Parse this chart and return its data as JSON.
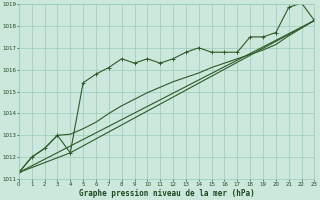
{
  "title": "Graphe pression niveau de la mer (hPa)",
  "bg_color": "#cce8dd",
  "grid_color": "#99ccbb",
  "line_color": "#2d5a27",
  "x_min": 0,
  "x_max": 23,
  "y_min": 1011,
  "y_max": 1019,
  "series1": [
    [
      0,
      1011.3
    ],
    [
      1,
      1012.0
    ],
    [
      2,
      1012.4
    ],
    [
      3,
      1013.0
    ],
    [
      4,
      1012.2
    ],
    [
      5,
      1015.4
    ],
    [
      6,
      1015.8
    ],
    [
      7,
      1016.1
    ],
    [
      8,
      1016.5
    ],
    [
      9,
      1016.3
    ],
    [
      10,
      1016.5
    ],
    [
      11,
      1016.3
    ],
    [
      12,
      1016.5
    ],
    [
      13,
      1016.8
    ],
    [
      14,
      1017.0
    ],
    [
      15,
      1016.8
    ],
    [
      16,
      1016.8
    ],
    [
      17,
      1016.8
    ],
    [
      18,
      1017.5
    ],
    [
      19,
      1017.5
    ],
    [
      20,
      1017.7
    ],
    [
      21,
      1018.85
    ],
    [
      22,
      1019.05
    ],
    [
      23,
      1018.25
    ]
  ],
  "series2": [
    [
      0,
      1011.3
    ],
    [
      1,
      1012.0
    ],
    [
      2,
      1012.4
    ],
    [
      3,
      1013.0
    ],
    [
      4,
      1013.05
    ],
    [
      5,
      1013.3
    ],
    [
      6,
      1013.6
    ],
    [
      7,
      1014.0
    ],
    [
      8,
      1014.35
    ],
    [
      9,
      1014.65
    ],
    [
      10,
      1014.95
    ],
    [
      11,
      1015.2
    ],
    [
      12,
      1015.45
    ],
    [
      13,
      1015.65
    ],
    [
      14,
      1015.85
    ],
    [
      15,
      1016.1
    ],
    [
      16,
      1016.3
    ],
    [
      17,
      1016.5
    ],
    [
      18,
      1016.7
    ],
    [
      19,
      1016.9
    ],
    [
      20,
      1017.15
    ],
    [
      21,
      1017.55
    ],
    [
      22,
      1017.9
    ],
    [
      23,
      1018.25
    ]
  ],
  "series3_pts": [
    [
      0,
      1011.3
    ],
    [
      23,
      1018.25
    ]
  ],
  "series4_pts": [
    [
      0,
      1011.3
    ],
    [
      4,
      1012.2
    ],
    [
      23,
      1018.25
    ]
  ],
  "font_color": "#1a4a20",
  "ylabel_ticks": [
    1011,
    1012,
    1013,
    1014,
    1015,
    1016,
    1017,
    1018,
    1019
  ],
  "xlabel_ticks": [
    0,
    1,
    2,
    3,
    4,
    5,
    6,
    7,
    8,
    9,
    10,
    11,
    12,
    13,
    14,
    15,
    16,
    17,
    18,
    19,
    20,
    21,
    22,
    23
  ]
}
